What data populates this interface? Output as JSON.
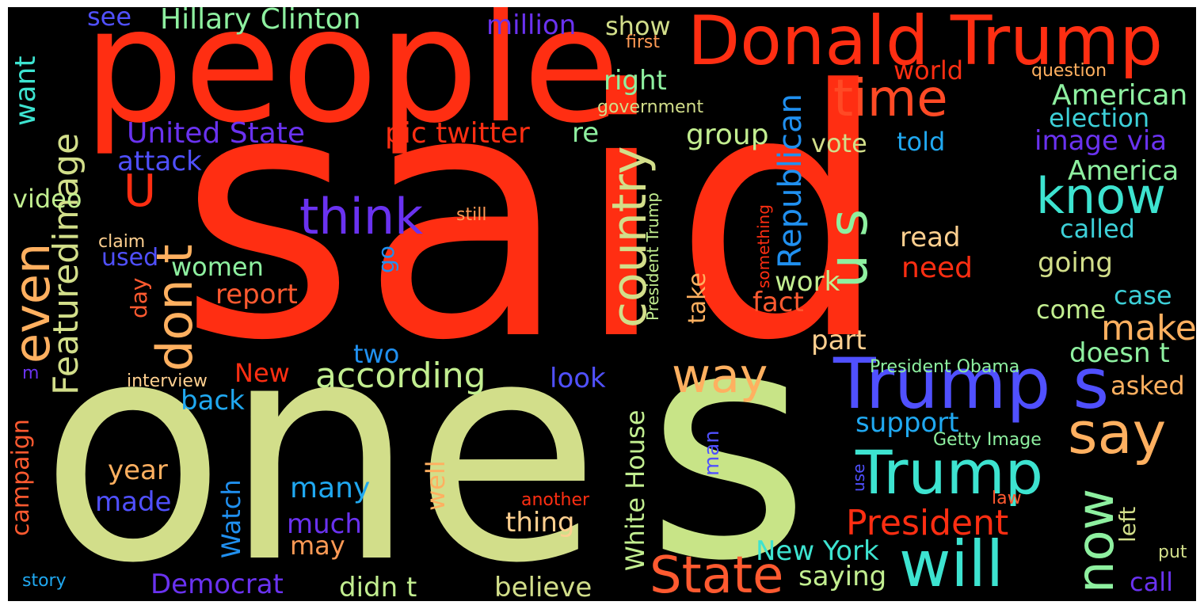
{
  "words": [
    {
      "id": "said",
      "text": "said",
      "color": "#ff2e12"
    },
    {
      "id": "one",
      "text": "one",
      "color": "#d2de8a"
    },
    {
      "id": "people",
      "text": "people",
      "color": "#ff2e12"
    },
    {
      "id": "s-big",
      "text": "s",
      "color": "#c8e487"
    },
    {
      "id": "donald-trump",
      "text": "Donald Trump",
      "color": "#ff2e12"
    },
    {
      "id": "trump-s",
      "text": "Trump s",
      "color": "#5050ff"
    },
    {
      "id": "trump-2",
      "text": "Trump",
      "color": "#3de3d0"
    },
    {
      "id": "will",
      "text": "will",
      "color": "#3de3d0"
    },
    {
      "id": "state",
      "text": "State",
      "color": "#ff5a30"
    },
    {
      "id": "say",
      "text": "say",
      "color": "#ffb060"
    },
    {
      "id": "know",
      "text": "know",
      "color": "#3de3d0"
    },
    {
      "id": "time",
      "text": "time",
      "color": "#ff4a25"
    },
    {
      "id": "way",
      "text": "way",
      "color": "#ffb060"
    },
    {
      "id": "think",
      "text": "think",
      "color": "#6a32f0"
    },
    {
      "id": "u-s",
      "text": "u s",
      "color": "#8ef0a0"
    },
    {
      "id": "now",
      "text": "now",
      "color": "#8ef0a0"
    },
    {
      "id": "country",
      "text": "country",
      "color": "#d2de8a"
    },
    {
      "id": "even",
      "text": "even",
      "color": "#ffb060"
    },
    {
      "id": "don-t",
      "text": "don t",
      "color": "#ffb060"
    },
    {
      "id": "featuredimage",
      "text": "Featuredimage",
      "color": "#d2de8a"
    },
    {
      "id": "republican",
      "text": "Republican",
      "color": "#ff2e12"
    },
    {
      "id": "president",
      "text": "President",
      "color": "#c2ee90"
    },
    {
      "id": "according",
      "text": "according",
      "color": "#2090f0"
    },
    {
      "id": "u",
      "text": "U",
      "color": "#ff2e12"
    },
    {
      "id": "hillary-clinton",
      "text": "Hillary Clinton",
      "color": "#8ef0a0"
    },
    {
      "id": "united-state",
      "text": "United State",
      "color": "#6a32f0"
    },
    {
      "id": "pic-twitter",
      "text": "pic twitter",
      "color": "#ff2e12"
    },
    {
      "id": "white-house",
      "text": "White House",
      "color": "#c2ee90"
    },
    {
      "id": "want",
      "text": "want",
      "color": "#3de3d0"
    },
    {
      "id": "american",
      "text": "American",
      "color": "#8ef0a0"
    },
    {
      "id": "election",
      "text": "election",
      "color": "#3dd0d8"
    },
    {
      "id": "image-via",
      "text": "image via",
      "color": "#6a32f0"
    },
    {
      "id": "america",
      "text": "America",
      "color": "#8ef0a0"
    },
    {
      "id": "called",
      "text": "called",
      "color": "#3dd0d8"
    },
    {
      "id": "going",
      "text": "going",
      "color": "#d2de8a"
    },
    {
      "id": "make",
      "text": "make",
      "color": "#ffb060"
    },
    {
      "id": "case",
      "text": "case",
      "color": "#3dd0d8"
    },
    {
      "id": "come",
      "text": "come",
      "color": "#c2ee90"
    },
    {
      "id": "doesn-t",
      "text": "doesn t",
      "color": "#8ef0a0"
    },
    {
      "id": "asked",
      "text": "asked",
      "color": "#ffb060"
    },
    {
      "id": "left",
      "text": "left",
      "color": "#d2de8a"
    },
    {
      "id": "call",
      "text": "call",
      "color": "#6a32f0"
    },
    {
      "id": "put",
      "text": "put",
      "color": "#d2de8a"
    },
    {
      "id": "million",
      "text": "million",
      "color": "#6a32f0"
    },
    {
      "id": "show",
      "text": "show",
      "color": "#d2de8a"
    },
    {
      "id": "first",
      "text": "first",
      "color": "#ff9a55"
    },
    {
      "id": "right",
      "text": "right",
      "color": "#8ef0a0"
    },
    {
      "id": "world",
      "text": "world",
      "color": "#ff2e12"
    },
    {
      "id": "question",
      "text": "question",
      "color": "#ffb060"
    },
    {
      "id": "government",
      "text": "government",
      "color": "#d2de8a"
    },
    {
      "id": "re",
      "text": "re",
      "color": "#8ef0a0"
    },
    {
      "id": "group",
      "text": "group",
      "color": "#c2ee90"
    },
    {
      "id": "vote",
      "text": "vote",
      "color": "#d2de8a"
    },
    {
      "id": "told",
      "text": "told",
      "color": "#20a8f0"
    },
    {
      "id": "read",
      "text": "read",
      "color": "#ffd090"
    },
    {
      "id": "need",
      "text": "need",
      "color": "#ff2e12"
    },
    {
      "id": "work",
      "text": "work",
      "color": "#c2ee90"
    },
    {
      "id": "fact",
      "text": "fact",
      "color": "#ff5a30"
    },
    {
      "id": "part",
      "text": "part",
      "color": "#ffd090"
    },
    {
      "id": "see",
      "text": "see",
      "color": "#5050ff"
    },
    {
      "id": "attack",
      "text": "attack",
      "color": "#5050ff"
    },
    {
      "id": "video",
      "text": "video",
      "color": "#c2ee90"
    },
    {
      "id": "claim",
      "text": "claim",
      "color": "#ffd090"
    },
    {
      "id": "used",
      "text": "used",
      "color": "#5050ff"
    },
    {
      "id": "women",
      "text": "women",
      "color": "#8ef0a0"
    },
    {
      "id": "report",
      "text": "report",
      "color": "#ff5a30"
    },
    {
      "id": "still",
      "text": "still",
      "color": "#ff9a55"
    },
    {
      "id": "go",
      "text": "go",
      "color": "#2090f0"
    },
    {
      "id": "take",
      "text": "take",
      "color": "#ffb060"
    },
    {
      "id": "something",
      "text": "something",
      "color": "#ff2e12"
    },
    {
      "id": "president-trump",
      "text": "President Trump",
      "color": "#c2ee90"
    },
    {
      "id": "day",
      "text": "day",
      "color": "#ff5a30"
    },
    {
      "id": "two",
      "text": "two",
      "color": "#2090f0"
    },
    {
      "id": "new",
      "text": "New",
      "color": "#ff2e12"
    },
    {
      "id": "interview",
      "text": "interview",
      "color": "#ffd090"
    },
    {
      "id": "m",
      "text": "m",
      "color": "#6a32f0"
    },
    {
      "id": "look",
      "text": "look",
      "color": "#5050ff"
    },
    {
      "id": "back",
      "text": "back",
      "color": "#20a8f0"
    },
    {
      "id": "campaign",
      "text": "campaign",
      "color": "#ff5a30"
    },
    {
      "id": "year",
      "text": "year",
      "color": "#ffb060"
    },
    {
      "id": "made",
      "text": "made",
      "color": "#5050ff"
    },
    {
      "id": "watch",
      "text": "Watch",
      "color": "#2090f0"
    },
    {
      "id": "many",
      "text": "many",
      "color": "#20a8f0"
    },
    {
      "id": "well",
      "text": "well",
      "color": "#ffb060"
    },
    {
      "id": "much",
      "text": "much",
      "color": "#6a32f0"
    },
    {
      "id": "may",
      "text": "may",
      "color": "#ff9a55"
    },
    {
      "id": "thing",
      "text": "thing",
      "color": "#ffd090"
    },
    {
      "id": "democrat",
      "text": "Democrat",
      "color": "#6a32f0"
    },
    {
      "id": "didn-t",
      "text": "didn t",
      "color": "#c2ee90"
    },
    {
      "id": "believe",
      "text": "believe",
      "color": "#d2de8a"
    },
    {
      "id": "story",
      "text": "story",
      "color": "#20a8f0"
    },
    {
      "id": "president-obama",
      "text": "President Obama",
      "color": "#8ef0a0"
    },
    {
      "id": "support",
      "text": "support",
      "color": "#20a8f0"
    },
    {
      "id": "getty-image",
      "text": "Getty Image",
      "color": "#8ef0a0"
    },
    {
      "id": "man",
      "text": "man",
      "color": "#5050ff"
    },
    {
      "id": "use",
      "text": "use",
      "color": "#5050ff"
    },
    {
      "id": "new-york",
      "text": "New York",
      "color": "#3de3d0"
    },
    {
      "id": "saying",
      "text": "saying",
      "color": "#c2ee90"
    },
    {
      "id": "another",
      "text": "another",
      "color": "#ff2e12"
    },
    {
      "id": "law",
      "text": "law",
      "color": "#ff5a30"
    }
  ]
}
